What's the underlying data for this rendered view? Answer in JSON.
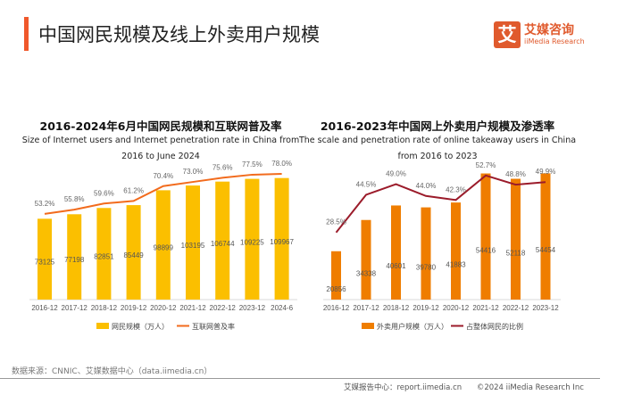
{
  "header": {
    "title": "中国网民规模及线上外卖用户规模",
    "logo_mark": "艾",
    "logo_cn": "艾媒咨询",
    "logo_en": "iiMedia Research"
  },
  "chart_data": [
    {
      "type": "bar",
      "title": "2016-2024年6月中国网民规模和互联网普及率",
      "subtitle_line1": "Size of Internet users and Internet penetration rate in China from",
      "subtitle_line2": "2016 to June 2024",
      "categories": [
        "2016-12",
        "2017-12",
        "2018-12",
        "2019-12",
        "2020-12",
        "2021-12",
        "2022-12",
        "2023-12",
        "2024-6"
      ],
      "series": [
        {
          "name": "网民规模（万人）",
          "type": "bar",
          "color": "#fbbf00",
          "values": [
            73125,
            77198,
            82851,
            85449,
            98899,
            103195,
            106744,
            109225,
            109967
          ]
        },
        {
          "name": "互联网普及率",
          "type": "line",
          "color": "#f26b1d",
          "values": [
            53.2,
            55.8,
            59.6,
            61.2,
            70.4,
            73.0,
            75.6,
            77.5,
            78.0
          ],
          "labels": [
            "53.2%",
            "55.8%",
            "59.6%",
            "61.2%",
            "70.4%",
            "73.0%",
            "75.6%",
            "77.5%",
            "78.0%"
          ]
        }
      ],
      "legend_position": "bottom",
      "grid": false
    },
    {
      "type": "bar",
      "title": "2016-2023年中国网上外卖用户规模及渗透率",
      "subtitle_line1": "The scale and penetration rate of online takeaway users in China",
      "subtitle_line2": "from 2016 to 2023",
      "categories": [
        "2016-12",
        "2017-12",
        "2018-12",
        "2019-12",
        "2020-12",
        "2021-12",
        "2022-12",
        "2023-12"
      ],
      "series": [
        {
          "name": "外卖用户规模（万人）",
          "type": "bar",
          "color": "#ef7d00",
          "values": [
            20856,
            34338,
            40601,
            39780,
            41883,
            54416,
            52118,
            54454
          ]
        },
        {
          "name": "占整体网民的比例",
          "type": "line",
          "color": "#9b1b2a",
          "values": [
            28.5,
            44.5,
            49.0,
            44.0,
            42.3,
            52.7,
            48.8,
            49.9
          ],
          "labels": [
            "28.5%",
            "44.5%",
            "49.0%",
            "44.0%",
            "42.3%",
            "52.7%",
            "48.8%",
            "49.9%"
          ]
        }
      ],
      "legend_position": "bottom",
      "grid": false
    }
  ],
  "footer": {
    "source": "数据来源：CNNIC、艾媒数据中心（data.iimedia.cn）",
    "report": "艾媒报告中心：report.iimedia.cn",
    "copyright": "©2024  iiMedia Research  Inc"
  }
}
